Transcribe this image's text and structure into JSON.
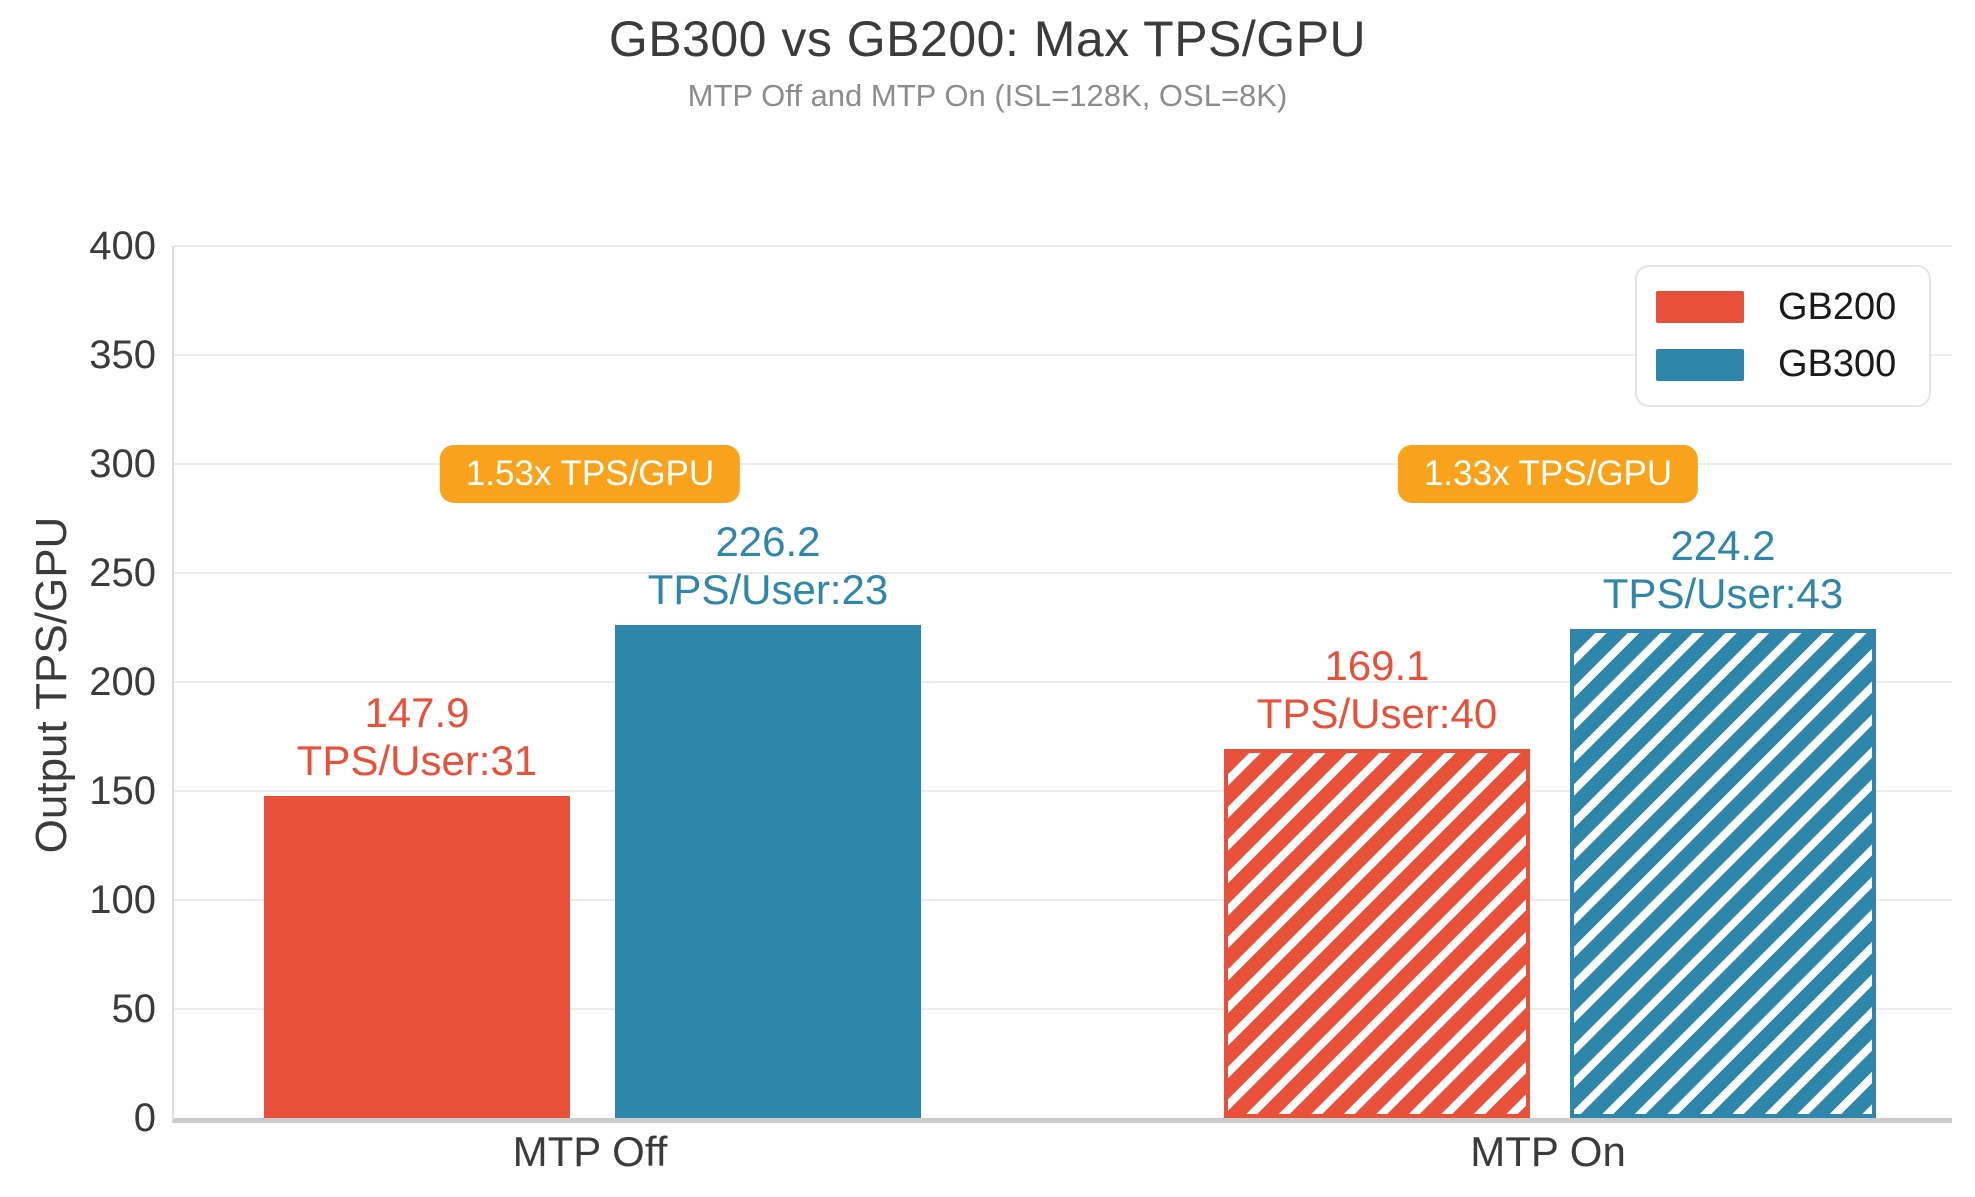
{
  "title": "GB300 vs GB200: Max TPS/GPU",
  "subtitle": "MTP Off and MTP On (ISL=128K, OSL=8K)",
  "chart_data": {
    "type": "bar",
    "title": "GB300 vs GB200: Max TPS/GPU",
    "subtitle": "MTP Off and MTP On (ISL=128K, OSL=8K)",
    "xlabel": "",
    "ylabel": "Output TPS/GPU",
    "ylim": [
      0,
      400
    ],
    "yticks": [
      0,
      50,
      100,
      150,
      200,
      250,
      300,
      350,
      400
    ],
    "grid": true,
    "legend_position": "top-right",
    "categories": [
      "MTP Off",
      "MTP On"
    ],
    "series": [
      {
        "name": "GB200",
        "color": "#E8503A",
        "values": [
          147.9,
          169.1
        ],
        "bar_labels": [
          [
            "147.9",
            "TPS/User:31"
          ],
          [
            "169.1",
            "TPS/User:40"
          ]
        ],
        "hatched": [
          false,
          true
        ]
      },
      {
        "name": "GB300",
        "color": "#2F86AB",
        "values": [
          226.2,
          224.2
        ],
        "bar_labels": [
          [
            "226.2",
            "TPS/User:23"
          ],
          [
            "224.2",
            "TPS/User:43"
          ]
        ],
        "hatched": [
          false,
          true
        ]
      }
    ],
    "annotations": [
      {
        "text": "1.53x TPS/GPU",
        "category": "MTP Off",
        "color": "#F9A21B",
        "text_color": "#FFFFFF"
      },
      {
        "text": "1.33x TPS/GPU",
        "category": "MTP On",
        "color": "#F9A21B",
        "text_color": "#FFFFFF"
      }
    ]
  },
  "colors": {
    "background": "#FFFFFF",
    "title": "#3B3B3B",
    "subtitle": "#8C8C8C",
    "tick": "#3B3B3B",
    "grid": "#ECECEC",
    "baseline": "#CBCBCB",
    "spine": "#DEDEDE",
    "legend_border": "#E4E4E4",
    "gb200": "#E8503A",
    "gb300": "#2F86AB",
    "badge": "#F9A21B"
  }
}
